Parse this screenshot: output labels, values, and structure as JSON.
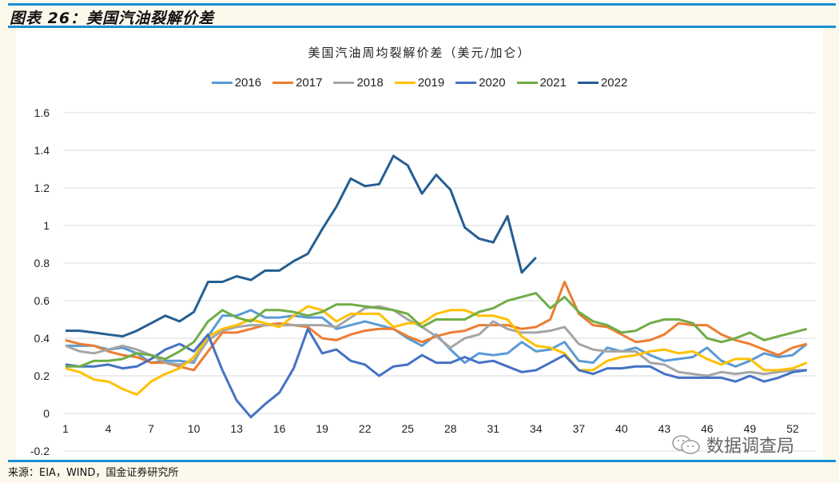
{
  "figure": {
    "title": "图表 26：美国汽油裂解价差",
    "source": "来源：EIA，WIND，国金证券研究所",
    "watermark": "数据调查局"
  },
  "chart_data": {
    "type": "line",
    "title": "美国汽油周均裂解价差（美元/加仑）",
    "xlabel": "",
    "ylabel": "",
    "ylim": [
      -0.2,
      1.6
    ],
    "yticks": [
      "-0.2",
      "0",
      "0.2",
      "0.4",
      "0.6",
      "0.8",
      "1",
      "1.2",
      "1.4",
      "1.6"
    ],
    "xticks": [
      "1",
      "4",
      "7",
      "10",
      "13",
      "16",
      "19",
      "22",
      "25",
      "28",
      "31",
      "34",
      "37",
      "40",
      "43",
      "46",
      "49",
      "52"
    ],
    "xlim": [
      1,
      53
    ],
    "grid": true,
    "legend_position": "top",
    "series": [
      {
        "name": "2016",
        "color": "#5b9bd5",
        "values": [
          0.36,
          0.36,
          0.36,
          0.34,
          0.35,
          0.32,
          0.27,
          0.28,
          0.28,
          0.27,
          0.41,
          0.52,
          0.52,
          0.55,
          0.51,
          0.51,
          0.52,
          0.51,
          0.51,
          0.45,
          0.47,
          0.49,
          0.47,
          0.45,
          0.4,
          0.36,
          0.42,
          0.34,
          0.27,
          0.32,
          0.31,
          0.32,
          0.38,
          0.33,
          0.34,
          0.38,
          0.28,
          0.27,
          0.35,
          0.33,
          0.35,
          0.31,
          0.28,
          0.29,
          0.3,
          0.35,
          0.28,
          0.25,
          0.28,
          0.32,
          0.3,
          0.31,
          0.37
        ]
      },
      {
        "name": "2017",
        "color": "#ed7d31",
        "values": [
          0.39,
          0.37,
          0.36,
          0.33,
          0.31,
          0.3,
          0.27,
          0.27,
          0.25,
          0.23,
          0.33,
          0.43,
          0.43,
          0.45,
          0.47,
          0.48,
          0.47,
          0.46,
          0.4,
          0.39,
          0.42,
          0.44,
          0.45,
          0.45,
          0.41,
          0.38,
          0.41,
          0.43,
          0.44,
          0.47,
          0.47,
          0.47,
          0.45,
          0.46,
          0.5,
          0.7,
          0.53,
          0.47,
          0.46,
          0.42,
          0.38,
          0.39,
          0.42,
          0.48,
          0.47,
          0.47,
          0.42,
          0.39,
          0.37,
          0.34,
          0.31,
          0.35,
          0.37
        ]
      },
      {
        "name": "2018",
        "color": "#a5a5a5",
        "values": [
          0.36,
          0.33,
          0.32,
          0.34,
          0.36,
          0.34,
          0.31,
          0.27,
          0.26,
          0.28,
          0.39,
          0.44,
          0.46,
          0.47,
          0.47,
          0.47,
          0.47,
          0.47,
          0.47,
          0.46,
          0.51,
          0.56,
          0.57,
          0.55,
          0.5,
          0.46,
          0.41,
          0.35,
          0.4,
          0.42,
          0.49,
          0.45,
          0.43,
          0.43,
          0.44,
          0.46,
          0.37,
          0.34,
          0.33,
          0.33,
          0.33,
          0.27,
          0.26,
          0.22,
          0.21,
          0.2,
          0.22,
          0.21,
          0.22,
          0.21,
          0.22,
          0.23,
          0.23
        ]
      },
      {
        "name": "2019",
        "color": "#ffc000",
        "values": [
          0.24,
          0.22,
          0.18,
          0.17,
          0.13,
          0.1,
          0.17,
          0.21,
          0.24,
          0.3,
          0.41,
          0.45,
          0.47,
          0.5,
          0.48,
          0.46,
          0.52,
          0.57,
          0.55,
          0.49,
          0.53,
          0.53,
          0.53,
          0.46,
          0.48,
          0.48,
          0.53,
          0.55,
          0.55,
          0.52,
          0.52,
          0.5,
          0.41,
          0.36,
          0.35,
          0.32,
          0.23,
          0.23,
          0.28,
          0.3,
          0.31,
          0.33,
          0.34,
          0.32,
          0.33,
          0.29,
          0.26,
          0.29,
          0.29,
          0.23,
          0.23,
          0.24,
          0.27
        ]
      },
      {
        "name": "2020",
        "color": "#4472c4",
        "values": [
          0.26,
          0.25,
          0.25,
          0.26,
          0.24,
          0.25,
          0.29,
          0.34,
          0.37,
          0.33,
          0.42,
          0.23,
          0.07,
          -0.02,
          0.05,
          0.11,
          0.24,
          0.45,
          0.32,
          0.34,
          0.28,
          0.26,
          0.2,
          0.25,
          0.26,
          0.31,
          0.27,
          0.27,
          0.3,
          0.27,
          0.28,
          0.25,
          0.22,
          0.23,
          0.27,
          0.31,
          0.23,
          0.21,
          0.24,
          0.24,
          0.25,
          0.25,
          0.21,
          0.19,
          0.19,
          0.19,
          0.19,
          0.17,
          0.2,
          0.17,
          0.19,
          0.22,
          0.23
        ]
      },
      {
        "name": "2021",
        "color": "#70ad47",
        "values": [
          0.25,
          0.25,
          0.28,
          0.28,
          0.29,
          0.32,
          0.31,
          0.29,
          0.33,
          0.38,
          0.49,
          0.55,
          0.51,
          0.49,
          0.55,
          0.55,
          0.54,
          0.52,
          0.54,
          0.58,
          0.58,
          0.57,
          0.56,
          0.55,
          0.53,
          0.46,
          0.5,
          0.5,
          0.5,
          0.54,
          0.56,
          0.6,
          0.62,
          0.64,
          0.56,
          0.62,
          0.54,
          0.49,
          0.47,
          0.43,
          0.44,
          0.48,
          0.5,
          0.5,
          0.48,
          0.4,
          0.38,
          0.4,
          0.43,
          0.39,
          0.41,
          0.43,
          0.45
        ]
      },
      {
        "name": "2022",
        "color": "#255e91",
        "values": [
          0.44,
          0.44,
          0.43,
          0.42,
          0.41,
          0.44,
          0.48,
          0.52,
          0.49,
          0.54,
          0.7,
          0.7,
          0.73,
          0.71,
          0.76,
          0.76,
          0.81,
          0.85,
          0.98,
          1.1,
          1.25,
          1.21,
          1.22,
          1.37,
          1.32,
          1.17,
          1.27,
          1.19,
          0.99,
          0.93,
          0.91,
          1.05,
          0.75,
          0.83
        ]
      }
    ]
  }
}
